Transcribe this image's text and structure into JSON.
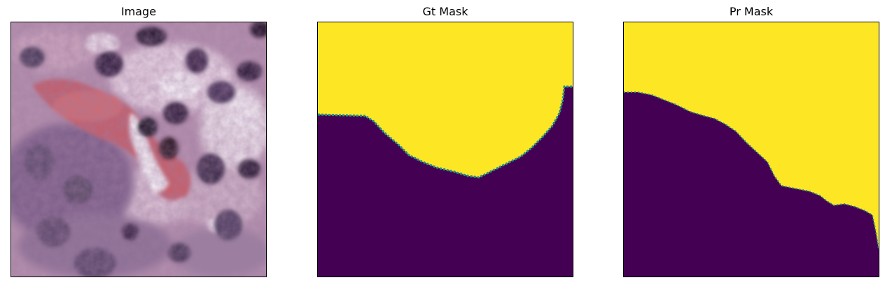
{
  "figure": {
    "panels": [
      {
        "title": "Image"
      },
      {
        "title": "Gt Mask"
      },
      {
        "title": "Pr Mask"
      }
    ]
  },
  "colors": {
    "mask_foreground": "#fde725",
    "mask_background": "#440154",
    "mask_edge": "#21918c",
    "frame": "#000000"
  }
}
